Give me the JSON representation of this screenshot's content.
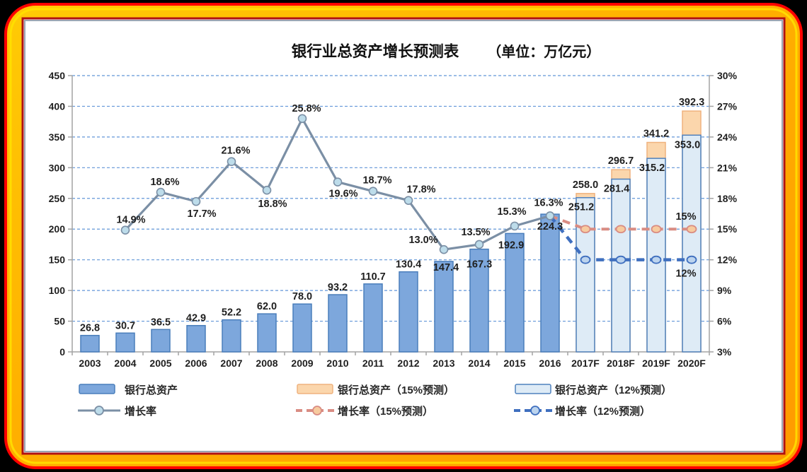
{
  "title": {
    "main": "银行业总资产增长预测表",
    "unit": "（单位：万亿元）"
  },
  "frame_colors": {
    "outer_bg": "#000000",
    "red_ring": "#FF0000",
    "yellow_ring": "#FFE200",
    "gold_light": "#FFCB05",
    "gold_mid": "#FFB000",
    "gold_dark": "#FF9A00",
    "inner_red_border": "#B01212",
    "panel_border": "#9CA6B4",
    "panel_bg": "#FFFFFF"
  },
  "chart_data": {
    "type": "bar",
    "title": "银行业总资产增长预测表",
    "subtitle": "（单位：万亿元）",
    "categories": [
      "2003",
      "2004",
      "2005",
      "2006",
      "2007",
      "2008",
      "2009",
      "2010",
      "2011",
      "2012",
      "2013",
      "2014",
      "2015",
      "2016",
      "2017F",
      "2018F",
      "2019F",
      "2020F"
    ],
    "left_axis": {
      "min": 0,
      "max": 450,
      "step": 50,
      "ticks": [
        "450",
        "400",
        "350",
        "300",
        "250",
        "200",
        "150",
        "100",
        "50",
        "0"
      ]
    },
    "right_axis": {
      "min_pct": 3,
      "max_pct": 30,
      "step_pct": 3,
      "ticks": [
        "30%",
        "27%",
        "24%",
        "21%",
        "18%",
        "15%",
        "12%",
        "9%",
        "6%",
        "3%"
      ]
    },
    "grid": "dashed-horizontal",
    "legend_position": "bottom",
    "series": [
      {
        "name": "银行总资产",
        "type": "bar",
        "fill": "#7DA7DC",
        "border": "#4A7EBB",
        "values": [
          26.8,
          30.7,
          36.5,
          42.9,
          52.2,
          62.0,
          78.0,
          93.2,
          110.7,
          130.4,
          147.4,
          167.3,
          192.9,
          224.3,
          null,
          null,
          null,
          null
        ]
      },
      {
        "name": "银行总资产（15%预测）",
        "type": "bar",
        "fill": "#FBD6AC",
        "border": "#EFB27E",
        "values": [
          null,
          null,
          null,
          null,
          null,
          null,
          null,
          null,
          null,
          null,
          null,
          null,
          null,
          null,
          258.0,
          296.7,
          341.2,
          392.3
        ]
      },
      {
        "name": "银行总资产（12%预测）",
        "type": "bar",
        "fill": "#DEEBF6",
        "border": "#4F81BD",
        "values": [
          null,
          null,
          null,
          null,
          null,
          null,
          null,
          null,
          null,
          null,
          null,
          null,
          null,
          null,
          251.2,
          281.4,
          315.2,
          353.0
        ]
      },
      {
        "name": "增长率",
        "type": "line",
        "style": "solid",
        "color": "#7B8FA5",
        "marker_fill": "#BDDCEA",
        "values": [
          null,
          14.9,
          18.6,
          17.7,
          21.6,
          18.8,
          25.8,
          19.6,
          18.7,
          17.8,
          13.0,
          13.5,
          15.3,
          16.3,
          null,
          null,
          null,
          null
        ]
      },
      {
        "name": "增长率（15%预测）",
        "type": "line",
        "style": "dashed",
        "color": "#D98C83",
        "marker_fill": "#F7CB9F",
        "end_label": "15%",
        "values": [
          null,
          null,
          null,
          null,
          null,
          null,
          null,
          null,
          null,
          null,
          null,
          null,
          null,
          16.3,
          15,
          15,
          15,
          15
        ]
      },
      {
        "name": "增长率（12%预测）",
        "type": "line",
        "style": "dashed",
        "color": "#3F6FBF",
        "marker_fill": "#BCD4EE",
        "end_label": "12%",
        "values": [
          null,
          null,
          null,
          null,
          null,
          null,
          null,
          null,
          null,
          null,
          null,
          null,
          null,
          16.3,
          12,
          12,
          12,
          12
        ]
      }
    ],
    "bar_labels": [
      "26.8",
      "30.7",
      "36.5",
      "42.9",
      "52.2",
      "62.0",
      "78.0",
      "93.2",
      "110.7",
      "130.4",
      "147.4",
      "167.3",
      "192.9",
      "224.3"
    ],
    "forecast15_labels": [
      "258.0",
      "296.7",
      "341.2",
      "392.3"
    ],
    "forecast12_labels": [
      "251.2",
      "281.4",
      "315.2",
      "353.0"
    ],
    "growth_labels": [
      "14.9%",
      "18.6%",
      "17.7%",
      "21.6%",
      "18.8%",
      "25.8%",
      "19.6%",
      "18.7%",
      "17.8%",
      "13.0%",
      "13.5%",
      "15.3%",
      "16.3%"
    ]
  }
}
